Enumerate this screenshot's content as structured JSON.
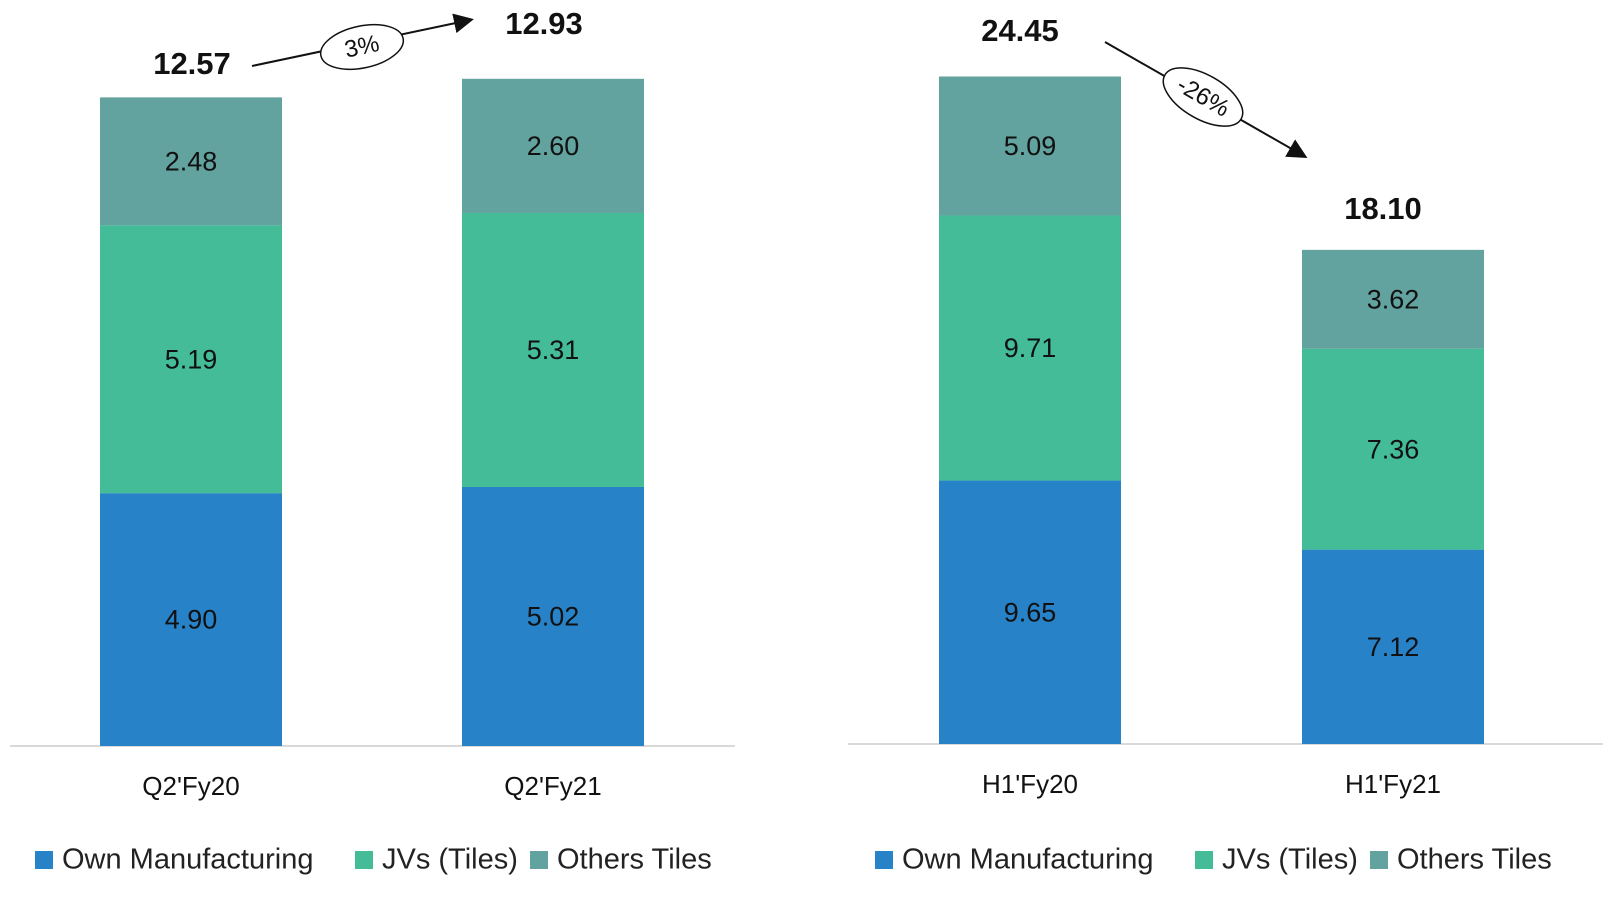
{
  "colors": {
    "own_manufacturing": "#2782C8",
    "jvs_tiles": "#43BC97",
    "others_tiles": "#62A29F",
    "baseline": "#d9d9d9",
    "text": "#111111"
  },
  "chart_data": [
    {
      "type": "bar",
      "stacked": true,
      "categories": [
        "Q2'Fy20",
        "Q2'Fy21"
      ],
      "series": [
        {
          "name": "Own Manufacturing",
          "values": [
            4.9,
            5.02
          ]
        },
        {
          "name": "JVs (Tiles)",
          "values": [
            5.19,
            5.31
          ]
        },
        {
          "name": "Others Tiles",
          "values": [
            2.48,
            2.6
          ]
        }
      ],
      "totals": [
        "12.57",
        "12.93"
      ],
      "segment_labels": [
        [
          "4.90",
          "5.02"
        ],
        [
          "5.19",
          "5.31"
        ],
        [
          "2.48",
          "2.60"
        ]
      ],
      "change_annotation": "3%",
      "ylim": [
        0,
        13.5
      ],
      "legend_position": "bottom",
      "grid": false
    },
    {
      "type": "bar",
      "stacked": true,
      "categories": [
        "H1'Fy20",
        "H1'Fy21"
      ],
      "series": [
        {
          "name": "Own Manufacturing",
          "values": [
            9.65,
            7.12
          ]
        },
        {
          "name": "JVs (Tiles)",
          "values": [
            9.71,
            7.36
          ]
        },
        {
          "name": "Others Tiles",
          "values": [
            5.09,
            3.62
          ]
        }
      ],
      "totals": [
        "24.45",
        "18.10"
      ],
      "segment_labels": [
        [
          "9.65",
          "7.12"
        ],
        [
          "9.71",
          "7.36"
        ],
        [
          "5.09",
          "3.62"
        ]
      ],
      "change_annotation": "-26%",
      "ylim": [
        0,
        25
      ],
      "legend_position": "bottom",
      "grid": false
    }
  ]
}
